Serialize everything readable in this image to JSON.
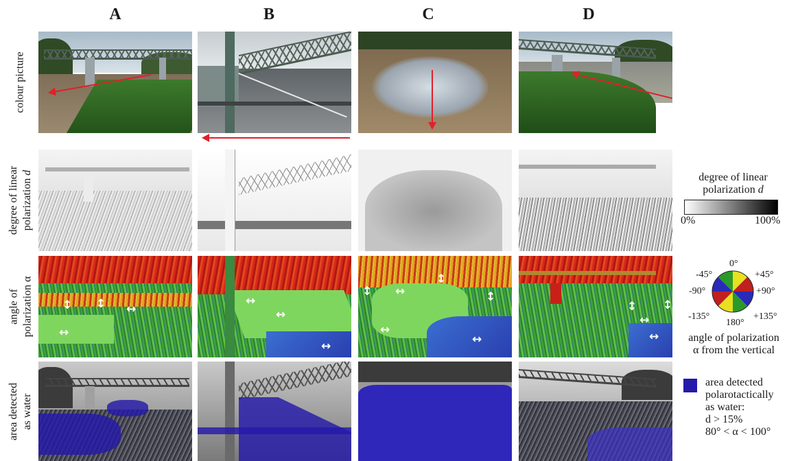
{
  "columns": [
    "A",
    "B",
    "C",
    "D"
  ],
  "rows": {
    "colour": "colour picture",
    "degree_line1": "degree of linear",
    "degree_line2": "polarization ",
    "degree_var": "d",
    "angle_line1": "angle of",
    "angle_line2": "polarization α",
    "water_line1": "area detected",
    "water_line2": "as water"
  },
  "legend_degree": {
    "title_line1": "degree of linear",
    "title_line2": "polarization ",
    "title_var": "d",
    "min": "0%",
    "max": "100%"
  },
  "legend_angle": {
    "deg_0": "0°",
    "deg_p45": "+45°",
    "deg_m45": "-45°",
    "deg_p90": "+90°",
    "deg_m90": "-90°",
    "deg_p135": "+135°",
    "deg_m135": "-135°",
    "deg_180": "180°",
    "caption_line1": "angle of polarization",
    "caption_line2": "α from the vertical"
  },
  "legend_water": {
    "line1": "area detected",
    "line2": "polarotactically",
    "line3": "as water:",
    "cond1": "d > 15%",
    "cond2": "80° < α < 100°"
  },
  "arrow_symbol": "↔",
  "arrow_symbol_v": "↕",
  "colors": {
    "water_overlay": "#241aaa",
    "red_arrow": "#e0202a",
    "green_field": "#3aa33a",
    "red_field": "#d8261e"
  }
}
